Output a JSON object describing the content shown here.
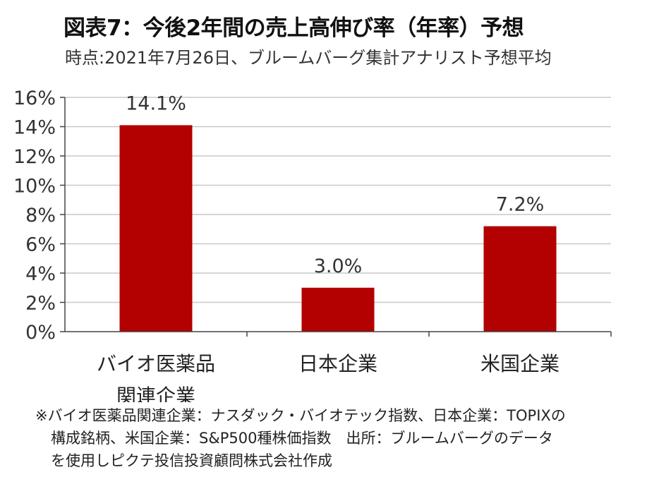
{
  "header": {
    "title": "図表7：今後2年間の売上高伸び率（年率）予想",
    "subtitle": "時点:2021年7月26日、ブルームバーグ集計アナリスト予想平均"
  },
  "chart_data": {
    "type": "bar",
    "categories": [
      [
        "バイオ医薬品",
        "関連企業"
      ],
      [
        "日本企業"
      ],
      [
        "米国企業"
      ]
    ],
    "values": [
      14.1,
      3.0,
      7.2
    ],
    "data_labels": [
      "14.1%",
      "3.0%",
      "7.2%"
    ],
    "ylim": [
      0,
      16
    ],
    "yticks": [
      "0%",
      "2%",
      "4%",
      "6%",
      "8%",
      "10%",
      "12%",
      "14%",
      "16%"
    ],
    "grid": true,
    "legend": "none",
    "colors": {
      "bar": "#b30000",
      "grid": "#c8c8c8",
      "axis": "#444444"
    }
  },
  "footnote": {
    "line1": "※バイオ医薬品関連企業：ナスダック・バイオテック指数、日本企業：TOPIXの",
    "line2": "構成銘柄、米国企業：S&P500種株価指数　出所：ブルームバーグのデータ",
    "line3": "を使用しピクテ投信投資顧問株式会社作成"
  }
}
